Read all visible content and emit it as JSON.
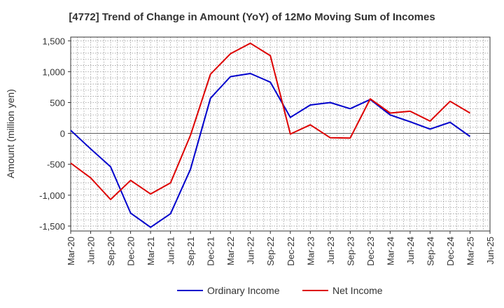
{
  "chart_data": {
    "type": "line",
    "title": "[4772]  Trend of Change in Amount (YoY) of 12Mo Moving Sum of Incomes",
    "ylabel": "Amount (million yen)",
    "xlabel": "",
    "ylim": [
      -1580,
      1560
    ],
    "yticks": [
      -1500,
      -1000,
      -500,
      0,
      500,
      1000,
      1500
    ],
    "ytick_labels": [
      "-1,500",
      "-1,000",
      "-500",
      "0",
      "500",
      "1,000",
      "1,500"
    ],
    "categories": [
      "Mar-20",
      "Jun-20",
      "Sep-20",
      "Dec-20",
      "Mar-21",
      "Jun-21",
      "Sep-21",
      "Dec-21",
      "Mar-22",
      "Jun-22",
      "Sep-22",
      "Dec-22",
      "Mar-23",
      "Jun-23",
      "Sep-23",
      "Dec-23",
      "Mar-24",
      "Jun-24",
      "Sep-24",
      "Dec-24",
      "Mar-25",
      "Jun-25"
    ],
    "series": [
      {
        "name": "Ordinary Income",
        "color": "#0000cc",
        "values": [
          50,
          -250,
          -540,
          -1290,
          -1520,
          -1300,
          -580,
          570,
          920,
          970,
          830,
          260,
          460,
          500,
          400,
          550,
          300,
          190,
          70,
          180,
          -50,
          null
        ]
      },
      {
        "name": "Net Income",
        "color": "#dd0000",
        "values": [
          -480,
          -720,
          -1070,
          -760,
          -980,
          -800,
          -30,
          960,
          1290,
          1460,
          1260,
          -10,
          140,
          -70,
          -75,
          560,
          330,
          360,
          200,
          520,
          330,
          null
        ]
      }
    ],
    "grid": true,
    "legend": "bottom-center"
  }
}
